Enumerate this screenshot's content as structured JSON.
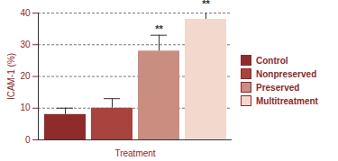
{
  "chart_data": {
    "type": "bar",
    "categories": [
      "Control",
      "Nonpreserved",
      "Preserved",
      "Multitreatment"
    ],
    "values": [
      8,
      10,
      28,
      38
    ],
    "errors": [
      2,
      3,
      5,
      3
    ],
    "colors": [
      "#8e2b2b",
      "#a8433e",
      "#c98e80",
      "#f3d8cd"
    ],
    "x_label": "Treatment",
    "y_label": "ICAM-1 (%)",
    "ylim": [
      0,
      40
    ],
    "yticks": [
      0,
      10,
      20,
      30,
      40
    ],
    "grid": true,
    "legend": "right",
    "tick_labels": "y",
    "annotations": [
      {
        "category": "Preserved",
        "text": "**"
      },
      {
        "category": "Multitreatment",
        "text": "**"
      }
    ]
  }
}
